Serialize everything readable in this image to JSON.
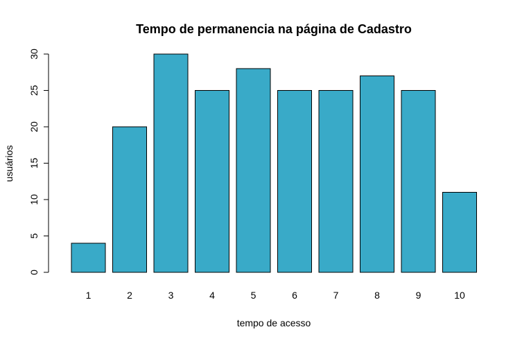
{
  "chart_data": {
    "type": "bar",
    "title": "Tempo de permanencia na página de Cadastro",
    "xlabel": "tempo de acesso",
    "ylabel": "usuários",
    "categories": [
      "1",
      "2",
      "3",
      "4",
      "5",
      "6",
      "7",
      "8",
      "9",
      "10"
    ],
    "values": [
      4,
      20,
      30,
      25,
      28,
      25,
      25,
      27,
      25,
      11
    ],
    "ylim": [
      0,
      30
    ],
    "yticks": [
      "0",
      "5",
      "10",
      "15",
      "20",
      "25",
      "30"
    ],
    "bar_color": "#39AAC8",
    "grid": false,
    "legend": false
  }
}
